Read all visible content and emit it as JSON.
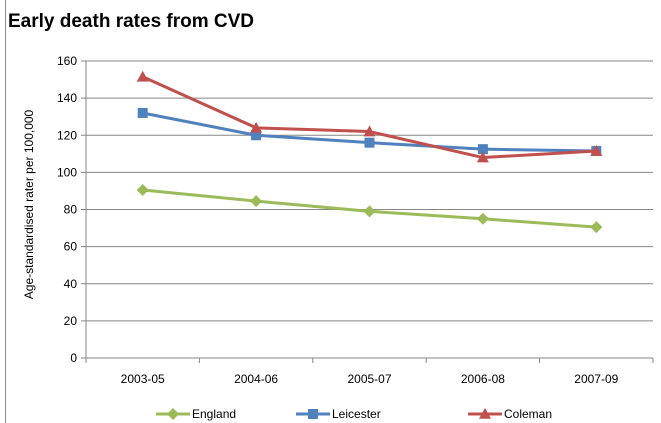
{
  "chart_data": {
    "type": "line",
    "title": "Early death rates from CVD",
    "xlabel": "",
    "ylabel": "Age-standardised rater per 100,000",
    "categories": [
      "2003-05",
      "2004-06",
      "2005-07",
      "2006-08",
      "2007-09"
    ],
    "ylim": [
      0,
      160
    ],
    "yticks": [
      0,
      20,
      40,
      60,
      80,
      100,
      120,
      140,
      160
    ],
    "grid": true,
    "legend_position": "bottom",
    "series": [
      {
        "name": "England",
        "values": [
          90.5,
          84.5,
          79,
          75,
          70.5
        ],
        "color": "#9bbb59",
        "marker": "diamond"
      },
      {
        "name": "Leicester",
        "values": [
          132,
          120,
          116,
          112.5,
          111.5
        ],
        "color": "#4f81bd",
        "marker": "square"
      },
      {
        "name": "Coleman",
        "values": [
          151.5,
          124,
          122,
          108,
          111.5
        ],
        "color": "#c0504d",
        "marker": "triangle"
      }
    ]
  }
}
